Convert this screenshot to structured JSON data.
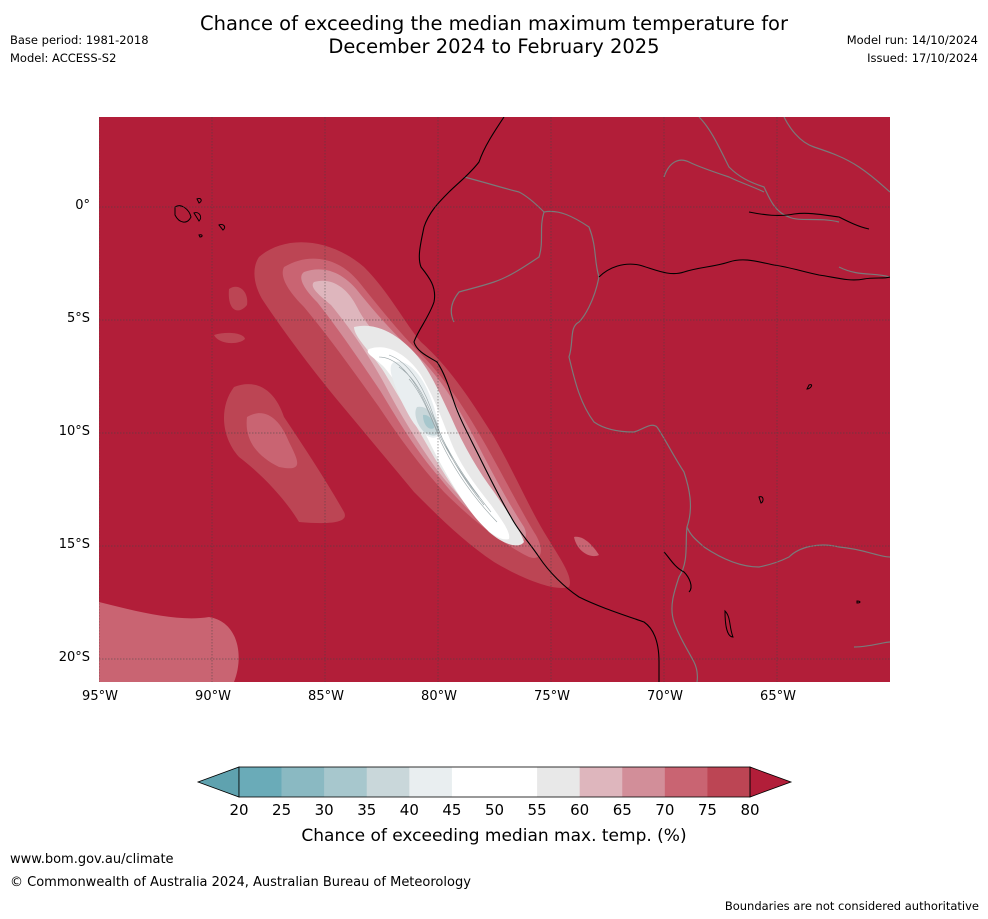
{
  "title_line1": "Chance of exceeding the median maximum temperature for",
  "title_line2": "December 2024 to February 2025",
  "meta_left": {
    "base_period": "Base period: 1981-2018",
    "model": "Model: ACCESS-S2"
  },
  "meta_right": {
    "model_run": "Model run: 14/10/2024",
    "issued": "Issued: 17/10/2024"
  },
  "map": {
    "lat_labels": [
      "0°",
      "5°S",
      "10°S",
      "15°S",
      "20°S"
    ],
    "lon_labels": [
      "95°W",
      "90°W",
      "85°W",
      "80°W",
      "75°W",
      "70°W",
      "65°W"
    ],
    "lat_range": [
      -21,
      4
    ],
    "lon_range": [
      -95,
      -60
    ],
    "colors": {
      "background": "#b21e39",
      "coast": "#000000",
      "border": "#7a7a7a",
      "grid": "#444444"
    }
  },
  "colorbar": {
    "ticks": [
      "20",
      "25",
      "30",
      "35",
      "40",
      "45",
      "50",
      "55",
      "60",
      "65",
      "70",
      "75",
      "80"
    ],
    "colors": [
      "#6aabb8",
      "#8ab9c2",
      "#a7c7cd",
      "#c9d7da",
      "#e9eef0",
      "#ffffff",
      "#ffffff",
      "#e8e8e8",
      "#deb6bd",
      "#d28e99",
      "#c96472",
      "#bc4554"
    ],
    "under_color": "#5fa2af",
    "over_color": "#b21e39",
    "label": "Chance of exceeding median max. temp. (%)"
  },
  "footer": {
    "website": "www.bom.gov.au/climate",
    "copyright": "© Commonwealth of Australia 2024, Australian Bureau of Meteorology",
    "disclaimer": "Boundaries are not considered authoritative"
  }
}
